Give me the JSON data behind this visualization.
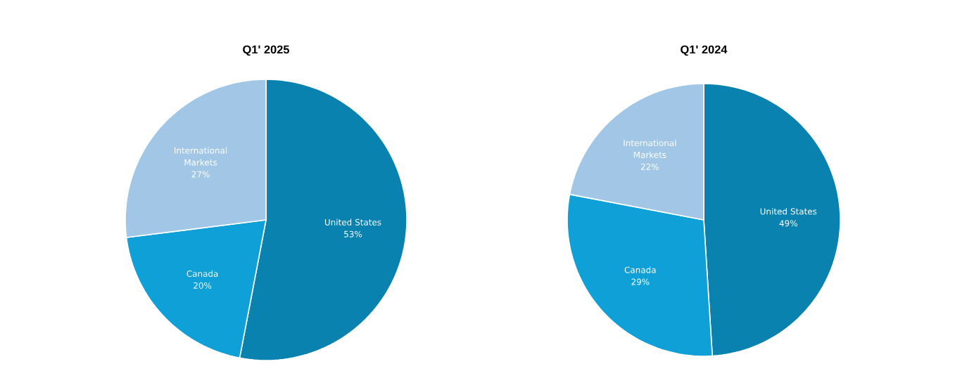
{
  "chart_data": [
    {
      "type": "pie",
      "title": "Q1' 2025",
      "categories": [
        "United States",
        "Canada",
        "International Markets"
      ],
      "values": [
        53,
        20,
        27
      ],
      "value_labels": [
        "53%",
        "20%",
        "27%"
      ],
      "colors": [
        "#0a82b0",
        "#10a0d8",
        "#a2c7e6"
      ]
    },
    {
      "type": "pie",
      "title": "Q1' 2024",
      "categories": [
        "United States",
        "Canada",
        "International Markets"
      ],
      "values": [
        49,
        29,
        22
      ],
      "value_labels": [
        "49%",
        "29%",
        "22%"
      ],
      "colors": [
        "#0a82b0",
        "#10a0d8",
        "#a2c7e6"
      ]
    }
  ]
}
